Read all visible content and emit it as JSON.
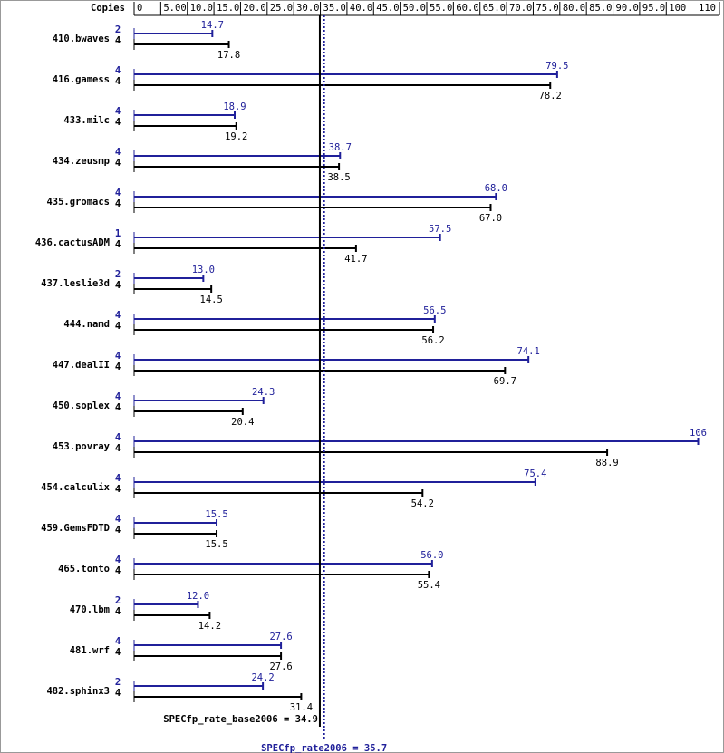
{
  "chart_data": {
    "type": "bar",
    "header": "Copies",
    "categories": [
      "410.bwaves",
      "416.gamess",
      "433.milc",
      "434.zeusmp",
      "435.gromacs",
      "436.cactusADM",
      "437.leslie3d",
      "444.namd",
      "447.dealII",
      "450.soplex",
      "453.povray",
      "454.calculix",
      "459.GemsFDTD",
      "465.tonto",
      "470.lbm",
      "481.wrf",
      "482.sphinx3"
    ],
    "series": [
      {
        "color": "#20209a",
        "copies": [
          2,
          4,
          4,
          4,
          4,
          1,
          2,
          4,
          4,
          4,
          4,
          4,
          4,
          4,
          2,
          4,
          2
        ],
        "values": [
          14.7,
          79.5,
          18.9,
          38.7,
          68.0,
          57.5,
          13.0,
          56.5,
          74.1,
          24.3,
          106,
          75.4,
          15.5,
          56.0,
          12.0,
          27.6,
          24.2
        ],
        "value_labels": [
          "14.7",
          "79.5",
          "18.9",
          "38.7",
          "68.0",
          "57.5",
          "13.0",
          "56.5",
          "74.1",
          "24.3",
          "106",
          "75.4",
          "15.5",
          "56.0",
          "12.0",
          "27.6",
          "24.2"
        ]
      },
      {
        "color": "#000000",
        "copies": [
          4,
          4,
          4,
          4,
          4,
          4,
          4,
          4,
          4,
          4,
          4,
          4,
          4,
          4,
          4,
          4,
          4
        ],
        "values": [
          17.8,
          78.2,
          19.2,
          38.5,
          67.0,
          41.7,
          14.5,
          56.2,
          69.7,
          20.4,
          88.9,
          54.2,
          15.5,
          55.4,
          14.2,
          27.6,
          31.4
        ],
        "value_labels": [
          "17.8",
          "78.2",
          "19.2",
          "38.5",
          "67.0",
          "41.7",
          "14.5",
          "56.2",
          "69.7",
          "20.4",
          "88.9",
          "54.2",
          "15.5",
          "55.4",
          "14.2",
          "27.6",
          "31.4"
        ]
      }
    ],
    "xlim": [
      0,
      110
    ],
    "xticks": [
      0,
      {
        "value": 5,
        "label": "5.00"
      },
      {
        "value": 10,
        "label": "10.0"
      },
      {
        "value": 15,
        "label": "15.0"
      },
      {
        "value": 20,
        "label": "20.0"
      },
      {
        "value": 25,
        "label": "25.0"
      },
      {
        "value": 30,
        "label": "30.0"
      },
      {
        "value": 35,
        "label": "35.0"
      },
      {
        "value": 40,
        "label": "40.0"
      },
      {
        "value": 45,
        "label": "45.0"
      },
      {
        "value": 50,
        "label": "50.0"
      },
      {
        "value": 55,
        "label": "55.0"
      },
      {
        "value": 60,
        "label": "60.0"
      },
      {
        "value": 65,
        "label": "65.0"
      },
      {
        "value": 70,
        "label": "70.0"
      },
      {
        "value": 75,
        "label": "75.0"
      },
      {
        "value": 80,
        "label": "80.0"
      },
      {
        "value": 85,
        "label": "85.0"
      },
      {
        "value": 90,
        "label": "90.0"
      },
      {
        "value": 95,
        "label": "95.0"
      },
      100,
      110
    ],
    "reference_lines": [
      {
        "label": "SPECfp_rate_base2006 = 34.9",
        "value": 34.9,
        "color": "#000000"
      },
      {
        "label": "SPECfp_rate2006 = 35.7",
        "value": 35.7,
        "color": "#20209a"
      }
    ]
  }
}
